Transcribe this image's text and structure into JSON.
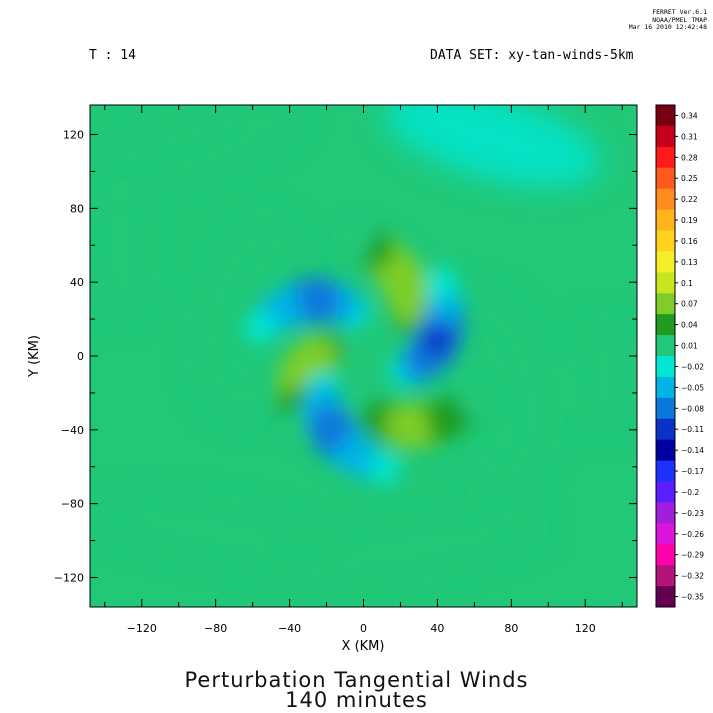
{
  "header": {
    "time_step": "T : 14",
    "dataset": "DATA SET: xy-tan-winds-5km",
    "stamp": [
      "FERRET  Ver.6.1",
      "NOAA/PMEL TMAP",
      "Mar 16 2010 12:42:48"
    ]
  },
  "chart_data": {
    "type": "heatmap",
    "title": "Perturbation Tangential Winds",
    "subtitle": "140 minutes",
    "xlabel": "X (KM)",
    "ylabel": "Y (KM)",
    "xlim": [
      -148,
      148
    ],
    "ylim": [
      -136,
      136
    ],
    "xticks": [
      -120,
      -80,
      -40,
      0,
      40,
      80,
      120
    ],
    "yticks": [
      -120,
      -80,
      -40,
      0,
      40,
      80,
      120
    ],
    "colorbar": {
      "levels": [
        "0.34",
        "0.31",
        "0.28",
        "0.25",
        "0.22",
        "0.19",
        "0.16",
        "0.13",
        "0.1",
        "0.07",
        "0.04",
        "0.01",
        "-0.02",
        "-0.05",
        "-0.08",
        "-0.11",
        "-0.14",
        "-0.17",
        "-0.2",
        "-0.23",
        "-0.26",
        "-0.29",
        "-0.32",
        "-0.35"
      ],
      "colors": [
        "#7a0010",
        "#c4001a",
        "#ff1a1a",
        "#ff5a1e",
        "#ff8c1e",
        "#ffb41e",
        "#ffd21e",
        "#f5ef2a",
        "#c8e61e",
        "#7ecd28",
        "#1f9b1f",
        "#21c878",
        "#00e6d2",
        "#00b4e6",
        "#0a78dc",
        "#0a32c8",
        "#0000a0",
        "#1e32ff",
        "#5a1eff",
        "#a01edc",
        "#dc14dc",
        "#ff00aa",
        "#b4147a",
        "#640050"
      ]
    },
    "field": {
      "background_value": 0.0,
      "features": [
        {
          "kind": "positive-spiral-arm",
          "center": [
            22,
            40
          ],
          "peak": 0.08
        },
        {
          "kind": "positive-spiral-arm",
          "center": [
            -32,
            -8
          ],
          "peak": 0.08
        },
        {
          "kind": "positive-spiral-arm",
          "center": [
            28,
            -38
          ],
          "peak": 0.07
        },
        {
          "kind": "negative-spiral-arm",
          "center": [
            -28,
            30
          ],
          "peak": -0.09
        },
        {
          "kind": "negative-spiral-arm",
          "center": [
            40,
            8
          ],
          "peak": -0.1
        },
        {
          "kind": "negative-spiral-arm",
          "center": [
            -16,
            -42
          ],
          "peak": -0.09
        }
      ]
    }
  }
}
